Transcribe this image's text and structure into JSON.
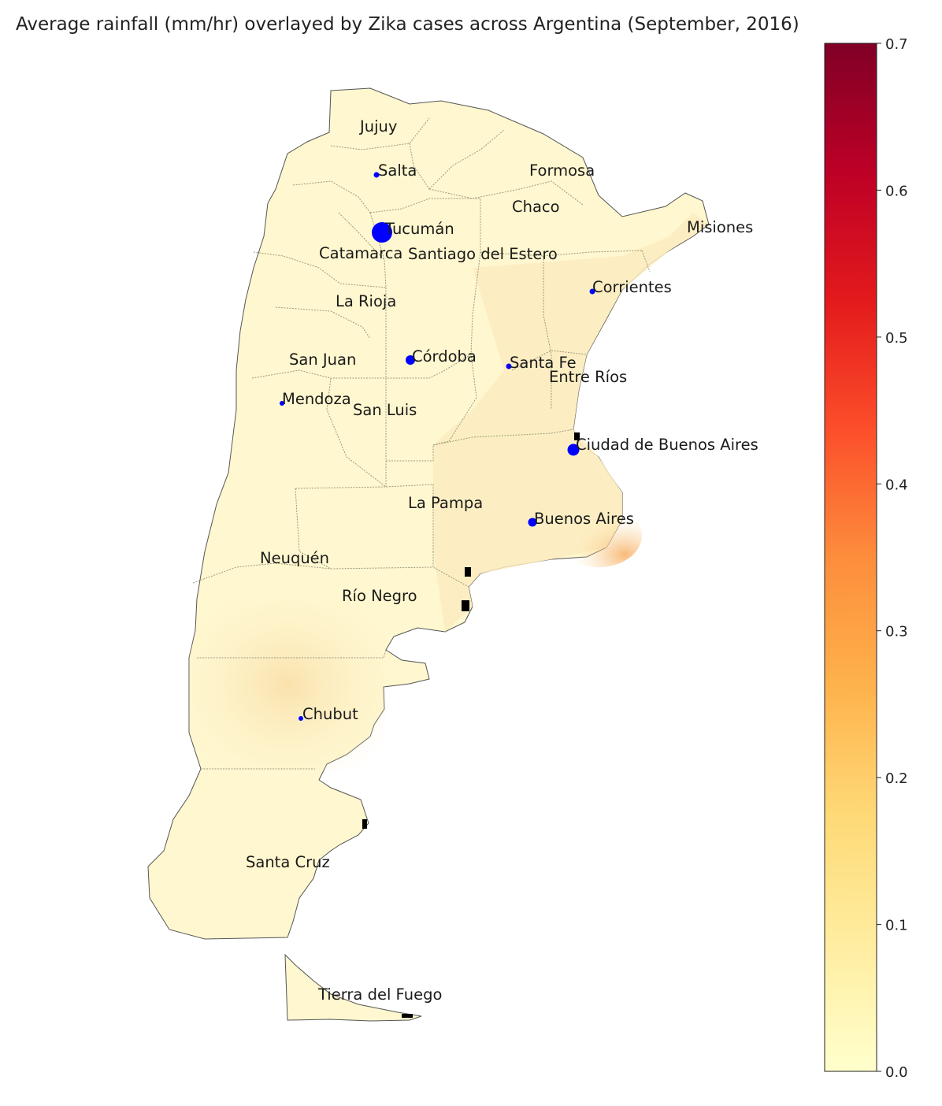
{
  "title": "Average rainfall (mm/hr) overlayed by Zika cases across Argentina (September, 2016)",
  "colorbar": {
    "min": 0.0,
    "max": 0.7,
    "ticks": [
      "0.0",
      "0.1",
      "0.2",
      "0.3",
      "0.4",
      "0.5",
      "0.6",
      "0.7"
    ],
    "colormap": "YlOrRd",
    "colors": [
      "#ffffcc",
      "#ffeda0",
      "#fed976",
      "#feb24c",
      "#fd8d3c",
      "#fc4e2a",
      "#e31a1c",
      "#b10026",
      "#800026"
    ]
  },
  "provinces": [
    {
      "name": "Jujuy"
    },
    {
      "name": "Salta",
      "zika_marker": "small"
    },
    {
      "name": "Formosa"
    },
    {
      "name": "Chaco"
    },
    {
      "name": "Misiones"
    },
    {
      "name": "Tucumán",
      "zika_marker": "large"
    },
    {
      "name": "Catamarca"
    },
    {
      "name": "Santiago del Estero"
    },
    {
      "name": "Corrientes",
      "zika_marker": "small"
    },
    {
      "name": "La Rioja"
    },
    {
      "name": "San Juan"
    },
    {
      "name": "Córdoba",
      "zika_marker": "medium"
    },
    {
      "name": "Santa Fe",
      "zika_marker": "small"
    },
    {
      "name": "Entre Ríos"
    },
    {
      "name": "Mendoza",
      "zika_marker": "small"
    },
    {
      "name": "San Luis"
    },
    {
      "name": "Ciudad de Buenos Aires",
      "zika_marker": "large"
    },
    {
      "name": "La Pampa"
    },
    {
      "name": "Buenos Aires",
      "zika_marker": "medium"
    },
    {
      "name": "Neuquén"
    },
    {
      "name": "Río Negro"
    },
    {
      "name": "Chubut",
      "zika_marker": "small"
    },
    {
      "name": "Santa Cruz"
    },
    {
      "name": "Tierra del Fuego"
    }
  ],
  "colors": {
    "zika_marker": "#0000ff",
    "border": "#9a9a80",
    "coast": "#000000"
  }
}
